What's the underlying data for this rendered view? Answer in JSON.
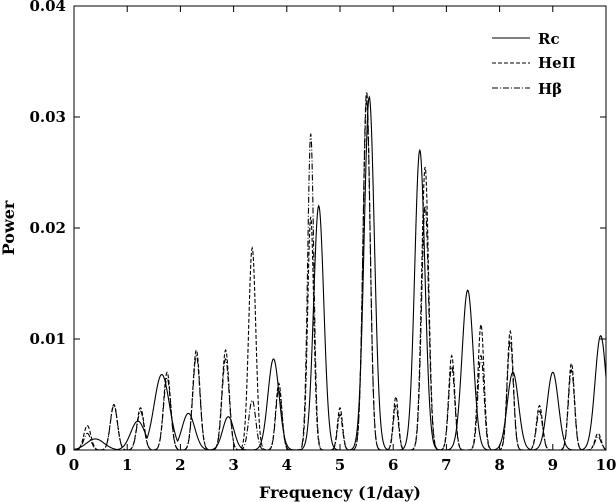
{
  "chart_data": {
    "type": "line",
    "title": "",
    "xlabel": "Frequency (1/day)",
    "ylabel": "Power",
    "xlim": [
      0,
      10
    ],
    "ylim": [
      0,
      0.04
    ],
    "xticks": [
      "0",
      "1",
      "2",
      "3",
      "4",
      "5",
      "6",
      "7",
      "8",
      "9",
      "10"
    ],
    "yticks": [
      "0",
      "0.01",
      "0.02",
      "0.03",
      "0.04"
    ],
    "grid": false,
    "legend_position": "top-right",
    "series": [
      {
        "name": "Rc",
        "color": "#000000",
        "dash": "solid",
        "peaks": [
          {
            "f": 0.4,
            "p": 0.001,
            "w": 0.35
          },
          {
            "f": 1.2,
            "p": 0.0026,
            "w": 0.28
          },
          {
            "f": 1.65,
            "p": 0.0068,
            "w": 0.3
          },
          {
            "f": 2.15,
            "p": 0.0033,
            "w": 0.25
          },
          {
            "f": 2.9,
            "p": 0.003,
            "w": 0.22
          },
          {
            "f": 3.75,
            "p": 0.0082,
            "w": 0.22
          },
          {
            "f": 4.6,
            "p": 0.022,
            "w": 0.2
          },
          {
            "f": 5.55,
            "p": 0.0318,
            "w": 0.2
          },
          {
            "f": 6.5,
            "p": 0.027,
            "w": 0.2
          },
          {
            "f": 7.4,
            "p": 0.0144,
            "w": 0.22
          },
          {
            "f": 8.25,
            "p": 0.007,
            "w": 0.22
          },
          {
            "f": 9.0,
            "p": 0.007,
            "w": 0.22
          },
          {
            "f": 9.9,
            "p": 0.0103,
            "w": 0.22
          }
        ]
      },
      {
        "name": "HeII",
        "color": "#000000",
        "dash": "4,2",
        "peaks": [
          {
            "f": 0.25,
            "p": 0.0022,
            "w": 0.14
          },
          {
            "f": 0.75,
            "p": 0.0041,
            "w": 0.14
          },
          {
            "f": 1.25,
            "p": 0.0038,
            "w": 0.14
          },
          {
            "f": 1.75,
            "p": 0.007,
            "w": 0.14
          },
          {
            "f": 2.3,
            "p": 0.009,
            "w": 0.14
          },
          {
            "f": 2.85,
            "p": 0.009,
            "w": 0.14
          },
          {
            "f": 3.35,
            "p": 0.0182,
            "w": 0.14
          },
          {
            "f": 3.85,
            "p": 0.006,
            "w": 0.12
          },
          {
            "f": 4.45,
            "p": 0.021,
            "w": 0.12
          },
          {
            "f": 5.0,
            "p": 0.0038,
            "w": 0.1
          },
          {
            "f": 5.5,
            "p": 0.0315,
            "w": 0.14
          },
          {
            "f": 6.05,
            "p": 0.0048,
            "w": 0.1
          },
          {
            "f": 6.6,
            "p": 0.0255,
            "w": 0.14
          },
          {
            "f": 7.1,
            "p": 0.0085,
            "w": 0.12
          },
          {
            "f": 7.65,
            "p": 0.0113,
            "w": 0.12
          },
          {
            "f": 8.2,
            "p": 0.0107,
            "w": 0.12
          },
          {
            "f": 8.75,
            "p": 0.004,
            "w": 0.12
          },
          {
            "f": 9.35,
            "p": 0.0078,
            "w": 0.12
          },
          {
            "f": 9.85,
            "p": 0.0015,
            "w": 0.12
          }
        ]
      },
      {
        "name": "Hβ",
        "color": "#000000",
        "dash": "6,2,1,2",
        "peaks": [
          {
            "f": 0.25,
            "p": 0.0015,
            "w": 0.14
          },
          {
            "f": 0.75,
            "p": 0.004,
            "w": 0.14
          },
          {
            "f": 1.25,
            "p": 0.0035,
            "w": 0.14
          },
          {
            "f": 1.75,
            "p": 0.0065,
            "w": 0.14
          },
          {
            "f": 2.3,
            "p": 0.0085,
            "w": 0.14
          },
          {
            "f": 2.85,
            "p": 0.0082,
            "w": 0.14
          },
          {
            "f": 3.35,
            "p": 0.0045,
            "w": 0.14
          },
          {
            "f": 3.85,
            "p": 0.0055,
            "w": 0.12
          },
          {
            "f": 4.45,
            "p": 0.0285,
            "w": 0.12
          },
          {
            "f": 5.0,
            "p": 0.0032,
            "w": 0.1
          },
          {
            "f": 5.5,
            "p": 0.0323,
            "w": 0.14
          },
          {
            "f": 6.05,
            "p": 0.004,
            "w": 0.1
          },
          {
            "f": 6.6,
            "p": 0.022,
            "w": 0.14
          },
          {
            "f": 7.1,
            "p": 0.0075,
            "w": 0.12
          },
          {
            "f": 7.65,
            "p": 0.0085,
            "w": 0.12
          },
          {
            "f": 8.2,
            "p": 0.0098,
            "w": 0.12
          },
          {
            "f": 8.75,
            "p": 0.0035,
            "w": 0.12
          },
          {
            "f": 9.35,
            "p": 0.0072,
            "w": 0.12
          },
          {
            "f": 9.85,
            "p": 0.0012,
            "w": 0.12
          }
        ]
      }
    ]
  }
}
